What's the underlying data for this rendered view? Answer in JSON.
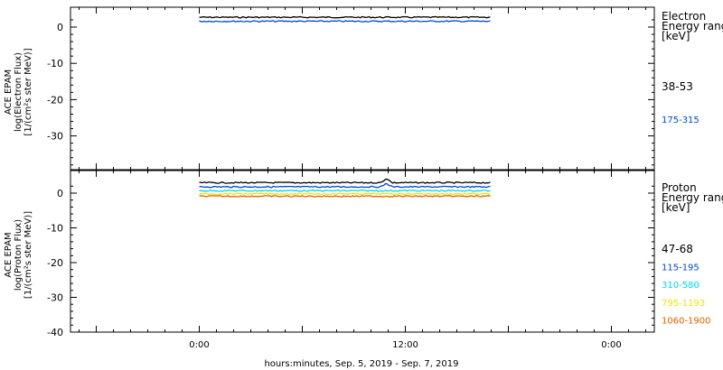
{
  "chart_data": [
    {
      "type": "line",
      "panel": "electron",
      "ylabel_lines": [
        "ACE EPAM",
        "log(Electron Flux)",
        "[1/(cm²s ster MeV)]"
      ],
      "yticks": [
        0,
        -10,
        -20,
        -30
      ],
      "ylim": [
        -41,
        4.5
      ],
      "xlim": [
        -7.5,
        26.5
      ],
      "legend_title": [
        "Electron",
        "Energy range",
        "[keV]"
      ],
      "series": [
        {
          "name": "38-53",
          "color": "#000000",
          "x": [
            0,
            17
          ],
          "values": [
            2.7,
            2.7
          ]
        },
        {
          "name": "175-315",
          "color": "#0047d0",
          "x": [
            0,
            17
          ],
          "values": [
            1.6,
            1.6
          ]
        }
      ]
    },
    {
      "type": "line",
      "panel": "proton",
      "ylabel_lines": [
        "ACE EPAM",
        "log(Proton Flux)",
        "[1/(cm²s ster MeV)]"
      ],
      "yticks": [
        0,
        -10,
        -20,
        -30,
        -40
      ],
      "ylim": [
        -41,
        4.5
      ],
      "xlim": [
        -7.5,
        26.5
      ],
      "legend_title": [
        "Proton",
        "Energy range",
        "[keV]"
      ],
      "series": [
        {
          "name": "47-68",
          "color": "#000000",
          "x": [
            0,
            17
          ],
          "values": [
            3.0,
            3.0
          ]
        },
        {
          "name": "115-195",
          "color": "#0047d0",
          "x": [
            0,
            17
          ],
          "values": [
            1.8,
            1.8
          ]
        },
        {
          "name": "310-580",
          "color": "#00d8e8",
          "x": [
            0,
            17
          ],
          "values": [
            0.7,
            0.7
          ]
        },
        {
          "name": "795-1193",
          "color": "#e8e800",
          "x": [
            0,
            17
          ],
          "values": [
            -0.2,
            -0.2
          ]
        },
        {
          "name": "1060-1900",
          "color": "#e06000",
          "x": [
            0,
            17
          ],
          "values": [
            -0.9,
            -0.9
          ]
        }
      ]
    }
  ],
  "xaxis": {
    "ticks": [
      "0:00",
      "12:00",
      "0:00"
    ],
    "title": "hours:minutes, Sep.  5, 2019 - Sep.  7, 2019"
  }
}
